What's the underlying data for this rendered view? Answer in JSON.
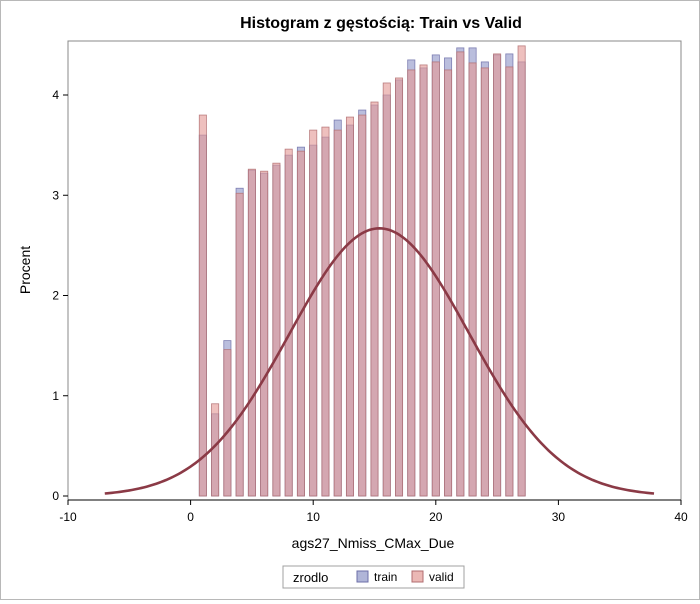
{
  "chart_data": {
    "type": "bar",
    "title": "Histogram z gęstością: Train vs Valid",
    "xlabel": "ags27_Nmiss_CMax_Due",
    "ylabel": "Procent",
    "xlim": [
      -10,
      40
    ],
    "ylim": [
      0,
      4.5
    ],
    "x_ticks": [
      "-10",
      "0",
      "10",
      "20",
      "30",
      "40"
    ],
    "y_ticks": [
      "0",
      "1",
      "2",
      "3",
      "4"
    ],
    "legend": {
      "title": "zrodlo",
      "position": "bottom"
    },
    "x": [
      1,
      2,
      3,
      4,
      5,
      6,
      7,
      8,
      9,
      10,
      11,
      12,
      13,
      14,
      15,
      16,
      17,
      18,
      19,
      20,
      21,
      22,
      23,
      24,
      25,
      26,
      27
    ],
    "series": [
      {
        "name": "train",
        "color": "#8f96c8",
        "values": [
          3.6,
          0.82,
          1.55,
          3.07,
          3.25,
          3.22,
          3.3,
          3.4,
          3.48,
          3.5,
          3.58,
          3.75,
          3.7,
          3.85,
          3.9,
          4.0,
          4.15,
          4.35,
          4.27,
          4.4,
          4.37,
          4.47,
          4.47,
          4.33,
          4.4,
          4.41,
          4.33
        ]
      },
      {
        "name": "valid",
        "color": "#e39a96",
        "values": [
          3.8,
          0.92,
          1.46,
          3.02,
          3.26,
          3.24,
          3.32,
          3.46,
          3.44,
          3.65,
          3.68,
          3.65,
          3.78,
          3.8,
          3.93,
          4.12,
          4.17,
          4.25,
          4.3,
          4.33,
          4.25,
          4.43,
          4.32,
          4.27,
          4.41,
          4.28,
          4.49
        ]
      }
    ],
    "density": {
      "mean": 15.4,
      "sd": 7.33,
      "peak": 2.67,
      "range": [
        -7,
        37.8
      ],
      "color": "#8b3a46"
    }
  }
}
